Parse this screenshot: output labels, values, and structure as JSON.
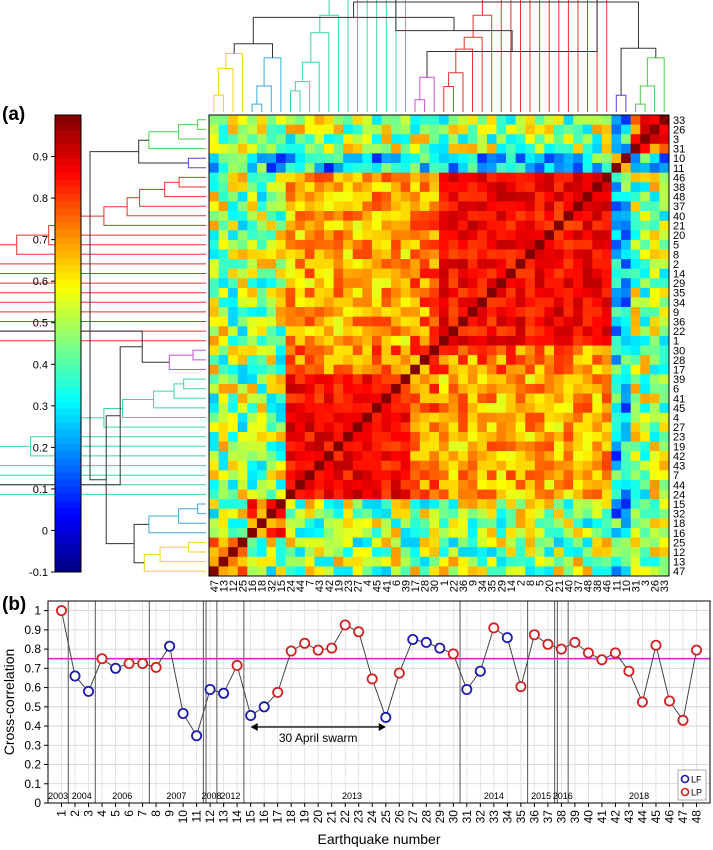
{
  "panel_labels": {
    "a": "(a)",
    "b": "(b)"
  },
  "chart_data": [
    {
      "type": "heatmap",
      "panel": "(a)",
      "title": "",
      "row_order": [
        33,
        26,
        3,
        31,
        10,
        11,
        46,
        38,
        48,
        37,
        40,
        21,
        20,
        5,
        8,
        2,
        14,
        29,
        35,
        34,
        9,
        36,
        22,
        1,
        30,
        28,
        17,
        39,
        6,
        41,
        45,
        4,
        27,
        23,
        19,
        42,
        43,
        7,
        44,
        24,
        15,
        32,
        18,
        16,
        25,
        12,
        13,
        47
      ],
      "column_order": [
        47,
        13,
        12,
        25,
        16,
        18,
        32,
        15,
        24,
        44,
        7,
        43,
        42,
        19,
        23,
        27,
        4,
        45,
        41,
        6,
        39,
        17,
        28,
        30,
        1,
        22,
        36,
        9,
        34,
        35,
        29,
        14,
        2,
        8,
        5,
        20,
        21,
        40,
        37,
        48,
        38,
        46,
        11,
        10,
        31,
        3,
        26,
        33
      ],
      "clusters": [
        {
          "color": "#f2d51a",
          "members": [
            47,
            13,
            12,
            25
          ]
        },
        {
          "color": "#40a9e0",
          "members": [
            16,
            18,
            32,
            15
          ]
        },
        {
          "color": "#3cd6a0",
          "members": [
            24,
            44,
            7,
            43,
            42,
            19,
            23,
            27,
            4,
            45,
            41,
            6,
            39
          ]
        },
        {
          "color": "#d24fd8",
          "members": [
            17,
            28,
            30
          ]
        },
        {
          "color": "#e8312b",
          "members": [
            1,
            22,
            36,
            9,
            34,
            35,
            29,
            14,
            2,
            8,
            5,
            20,
            21,
            40,
            37,
            48,
            38,
            46
          ]
        },
        {
          "color": "#5b3fd8",
          "members": [
            11,
            10
          ]
        },
        {
          "color": "#4cd24a",
          "members": [
            31,
            3,
            26,
            33
          ]
        }
      ],
      "colorbar": {
        "min": -0.1,
        "max": 1.0,
        "ticks": [
          -0.1,
          0,
          0.1,
          0.2,
          0.3,
          0.4,
          0.5,
          0.6,
          0.7,
          0.8,
          0.9
        ]
      }
    },
    {
      "type": "line",
      "panel": "(b)",
      "xlabel": "Earthquake number",
      "ylabel": "Cross-correlation",
      "xlim": [
        0,
        49
      ],
      "ylim": [
        0,
        1.05
      ],
      "yticks": [
        0,
        0.1,
        0.2,
        0.3,
        0.4,
        0.5,
        0.6,
        0.7,
        0.8,
        0.9,
        1
      ],
      "ytick_labels": [
        "0",
        "0.1",
        "0.2",
        "0.3",
        "0.4",
        "0.5",
        "0.6",
        "0.7",
        "0.8",
        "0.9",
        "1"
      ],
      "xticks": [
        1,
        2,
        3,
        4,
        5,
        6,
        7,
        8,
        9,
        10,
        11,
        12,
        13,
        14,
        15,
        16,
        17,
        18,
        19,
        20,
        21,
        22,
        23,
        24,
        25,
        26,
        27,
        28,
        29,
        30,
        31,
        32,
        33,
        34,
        35,
        36,
        37,
        38,
        39,
        40,
        41,
        42,
        43,
        44,
        45,
        46,
        47,
        48
      ],
      "threshold": {
        "y": 0.75,
        "color": "#e020e0"
      },
      "grid": true,
      "legend": {
        "position": "bottom-right",
        "entries": [
          {
            "name": "LF",
            "color": "#1a1ab4"
          },
          {
            "name": "LP",
            "color": "#d42020"
          }
        ]
      },
      "series": [
        {
          "x": [
            1,
            2,
            3,
            4,
            5,
            6,
            7,
            8,
            9,
            10,
            11,
            12,
            13,
            14,
            15,
            16,
            17,
            18,
            19,
            20,
            21,
            22,
            23,
            24,
            25,
            26,
            27,
            28,
            29,
            30,
            31,
            32,
            33,
            34,
            35,
            36,
            37,
            38,
            39,
            40,
            41,
            42,
            43,
            44,
            45,
            46,
            47,
            48
          ],
          "y": [
            1.0,
            0.66,
            0.58,
            0.75,
            0.7,
            0.725,
            0.725,
            0.705,
            0.815,
            0.465,
            0.35,
            0.59,
            0.57,
            0.715,
            0.455,
            0.5,
            0.575,
            0.79,
            0.83,
            0.795,
            0.805,
            0.925,
            0.89,
            0.645,
            0.445,
            0.675,
            0.85,
            0.835,
            0.805,
            0.775,
            0.59,
            0.685,
            0.91,
            0.86,
            0.605,
            0.875,
            0.825,
            0.8,
            0.835,
            0.78,
            0.745,
            0.78,
            0.685,
            0.525,
            0.82,
            0.53,
            0.43,
            0.795
          ],
          "type": [
            "LP",
            "LF",
            "LF",
            "LP",
            "LF",
            "LP",
            "LP",
            "LP",
            "LF",
            "LF",
            "LF",
            "LF",
            "LF",
            "LP",
            "LF",
            "LF",
            "LP",
            "LP",
            "LP",
            "LP",
            "LP",
            "LP",
            "LP",
            "LP",
            "LF",
            "LP",
            "LF",
            "LF",
            "LF",
            "LP",
            "LF",
            "LF",
            "LP",
            "LF",
            "LP",
            "LP",
            "LP",
            "LP",
            "LP",
            "LP",
            "LP",
            "LP",
            "LP",
            "LP",
            "LP",
            "LP",
            "LP",
            "LP"
          ]
        }
      ],
      "year_separators": [
        1.5,
        3.5,
        7.5,
        11.5,
        11.7,
        12.5,
        14.5,
        30.5,
        35.5,
        37.5,
        37.7,
        38.5
      ],
      "year_labels": [
        {
          "text": "2003",
          "x": 0.75
        },
        {
          "text": "2004",
          "x": 2.5
        },
        {
          "text": "2006",
          "x": 5.5
        },
        {
          "text": "2007",
          "x": 9.5
        },
        {
          "text": "2008",
          "x": 12.1
        },
        {
          "text": "2012",
          "x": 13.5
        },
        {
          "text": "2013",
          "x": 22.5
        },
        {
          "text": "2014",
          "x": 33
        },
        {
          "text": "2015",
          "x": 36.5
        },
        {
          "text": "2016",
          "x": 38.1
        },
        {
          "text": "2018",
          "x": 43.75
        }
      ],
      "annotation": {
        "text": "30 April swarm",
        "from": 15,
        "to": 25,
        "y": 0.395
      }
    }
  ]
}
